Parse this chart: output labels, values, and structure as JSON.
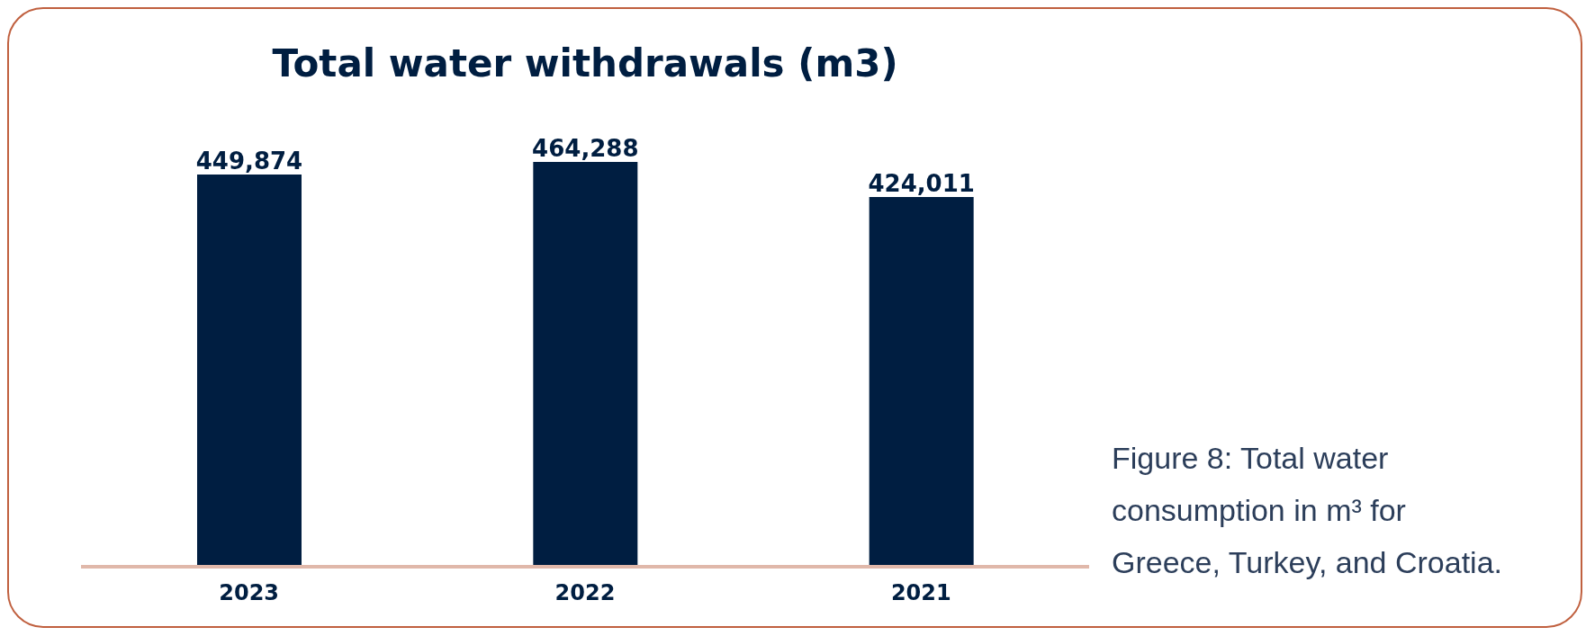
{
  "chart_data": {
    "type": "bar",
    "title": "Total water withdrawals (m3)",
    "categories": [
      "2023",
      "2022",
      "2021"
    ],
    "values": [
      449874,
      464288,
      424011
    ],
    "color": "#001e41",
    "value_labels": [
      "449,874",
      "464,288",
      "424,011"
    ],
    "annotations": [
      "Figure 8: Total water consumption in m³ for Greece, Turkey, and Croatia."
    ]
  }
}
